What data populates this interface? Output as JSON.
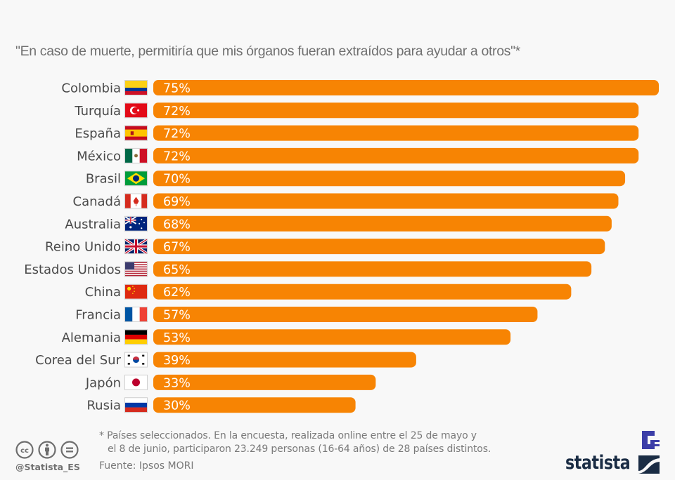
{
  "chart_data": {
    "type": "bar",
    "orientation": "horizontal",
    "title": "\"En caso de muerte, permitiría que mis órganos fueran extraídos para ayudar a otros\"*",
    "xlabel": "",
    "ylabel": "",
    "unit": "%",
    "xlim": [
      0,
      75
    ],
    "grid": false,
    "bar_color": "#f78403",
    "categories": [
      "Colombia",
      "Turquía",
      "España",
      "México",
      "Brasil",
      "Canadá",
      "Australia",
      "Reino Unido",
      "Estados Unidos",
      "China",
      "Francia",
      "Alemania",
      "Corea del Sur",
      "Japón",
      "Rusia"
    ],
    "values": [
      75,
      72,
      72,
      72,
      70,
      69,
      68,
      67,
      65,
      62,
      57,
      53,
      39,
      33,
      30
    ],
    "value_labels": [
      "75%",
      "72%",
      "72%",
      "72%",
      "70%",
      "69%",
      "68%",
      "67%",
      "65%",
      "62%",
      "57%",
      "53%",
      "39%",
      "33%",
      "30%"
    ],
    "flags": [
      "colombia-flag",
      "turkey-flag",
      "spain-flag",
      "mexico-flag",
      "brazil-flag",
      "canada-flag",
      "australia-flag",
      "uk-flag",
      "usa-flag",
      "china-flag",
      "france-flag",
      "germany-flag",
      "south-korea-flag",
      "japan-flag",
      "russia-flag"
    ]
  },
  "footer": {
    "footnote_line1": "* Países seleccionados. En la encuesta, realizada online entre el 25 de mayo y",
    "footnote_line2": "el 8 de junio, participaron 23.249 personas (16-64 años) de 28 países distintos.",
    "source": "Fuente: Ipsos MORI",
    "handle": "@Statista_ES",
    "license_icons": [
      "cc-icon",
      "attribution-icon",
      "no-derivatives-icon"
    ],
    "logo_text": "statista"
  }
}
